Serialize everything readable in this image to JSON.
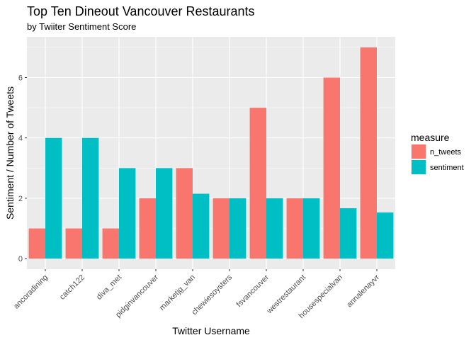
{
  "chart_data": {
    "type": "bar",
    "title": "Top Ten Dineout Vancouver Restaurants",
    "subtitle": "by Twiiter Sentiment Score",
    "xlabel": "Twitter Username",
    "ylabel": "Sentiment / Number of Tweets",
    "categories": [
      "ancoradining",
      "catch122",
      "diva_met",
      "pidginvancouver",
      "marketjg_van",
      "chewiesoysters",
      "fsvancouver",
      "westrestaurant",
      "housespecialvan",
      "annalenayvr"
    ],
    "series": [
      {
        "name": "n_tweets",
        "color": "#F8766D",
        "values": [
          1,
          1,
          1,
          2,
          3,
          2,
          5,
          2,
          6,
          7
        ]
      },
      {
        "name": "sentiment",
        "color": "#00BFC4",
        "values": [
          4,
          4,
          3,
          3,
          2.15,
          2,
          2,
          2,
          1.67,
          1.53
        ]
      }
    ],
    "ylim": [
      -0.35,
      7.35
    ],
    "yticks": [
      0,
      2,
      4,
      6
    ],
    "grid": true,
    "legend": {
      "title": "measure",
      "position": "right"
    },
    "panel_background": "#EBEBEB",
    "grid_color": "#FFFFFF"
  }
}
